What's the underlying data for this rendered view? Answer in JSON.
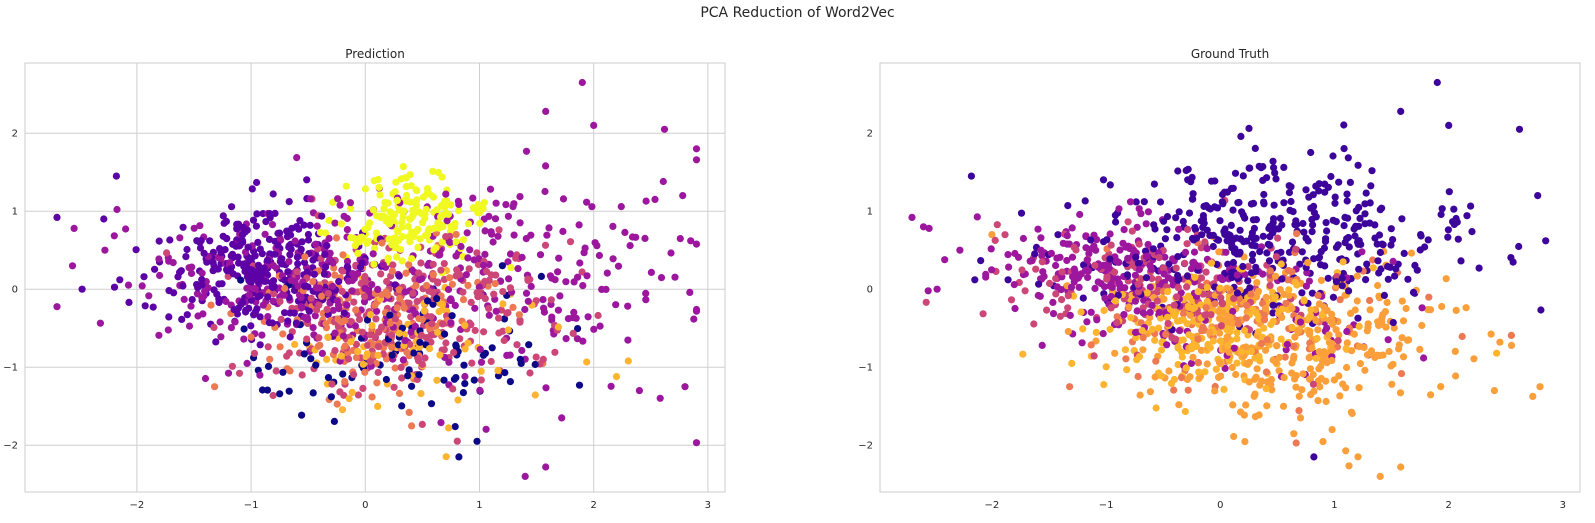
{
  "title": "PCA Reduction of Word2Vec",
  "chart_data": [
    {
      "type": "scatter",
      "title": "Prediction",
      "xlim": [
        -2.98,
        3.15
      ],
      "ylim": [
        -2.6,
        2.9
      ],
      "xticks": [
        -2,
        -1,
        0,
        1,
        2,
        3
      ],
      "yticks": [
        -2,
        -1,
        0,
        1,
        2
      ],
      "xtick_labels": [
        "−2",
        "−1",
        "0",
        "1",
        "2",
        "3"
      ],
      "ytick_labels": [
        "−2",
        "−1",
        "0",
        "1",
        "2"
      ],
      "grid": true,
      "colormap": "plasma",
      "cluster_colors": [
        "#0d0887",
        "#5c01a6",
        "#9c179e",
        "#cc4778",
        "#ed7953",
        "#fdb42f",
        "#f0f921"
      ],
      "clusters": [
        {
          "color_index": 6,
          "center": [
            0.35,
            0.85
          ],
          "spread": [
            0.32,
            0.3
          ],
          "count": 180
        },
        {
          "color_index": 1,
          "center": [
            -0.9,
            0.25
          ],
          "spread": [
            0.45,
            0.38
          ],
          "count": 320
        },
        {
          "color_index": 2,
          "center": [
            -0.5,
            0.0
          ],
          "spread": [
            0.75,
            0.5
          ],
          "count": 250
        },
        {
          "color_index": 2,
          "center": [
            1.3,
            0.3
          ],
          "spread": [
            0.85,
            0.75
          ],
          "count": 190
        },
        {
          "color_index": 3,
          "center": [
            0.3,
            -0.3
          ],
          "spread": [
            0.7,
            0.55
          ],
          "count": 280
        },
        {
          "color_index": 4,
          "center": [
            0.1,
            -0.3
          ],
          "spread": [
            0.5,
            0.45
          ],
          "count": 170
        },
        {
          "color_index": 5,
          "center": [
            0.4,
            -0.75
          ],
          "spread": [
            0.55,
            0.4
          ],
          "count": 80
        },
        {
          "color_index": 0,
          "center": [
            0.4,
            -0.8
          ],
          "spread": [
            0.75,
            0.45
          ],
          "count": 95
        }
      ],
      "outliers": [
        {
          "x": -2.7,
          "y": 0.92,
          "color_index": 1
        },
        {
          "x": -2.55,
          "y": 0.78,
          "color_index": 2
        },
        {
          "x": -2.48,
          "y": 0.0,
          "color_index": 1
        },
        {
          "x": -2.28,
          "y": 0.5,
          "color_index": 2
        },
        {
          "x": -2.18,
          "y": 1.45,
          "color_index": 1
        },
        {
          "x": -2.15,
          "y": 0.12,
          "color_index": 1
        },
        {
          "x": -1.32,
          "y": -1.25,
          "color_index": 4
        },
        {
          "x": 1.9,
          "y": 2.65,
          "color_index": 2
        },
        {
          "x": 2.0,
          "y": 2.1,
          "color_index": 2
        },
        {
          "x": 1.58,
          "y": 2.28,
          "color_index": 2
        },
        {
          "x": 2.62,
          "y": 2.05,
          "color_index": 2
        },
        {
          "x": 2.85,
          "y": 0.62,
          "color_index": 2
        },
        {
          "x": 2.78,
          "y": 1.2,
          "color_index": 2
        },
        {
          "x": 2.4,
          "y": -1.3,
          "color_index": 2
        },
        {
          "x": 2.8,
          "y": -1.25,
          "color_index": 2
        },
        {
          "x": 0.82,
          "y": -2.15,
          "color_index": 0
        },
        {
          "x": 1.4,
          "y": -2.4,
          "color_index": 2
        },
        {
          "x": 1.58,
          "y": -2.28,
          "color_index": 2
        },
        {
          "x": 2.2,
          "y": -1.12,
          "color_index": 5
        },
        {
          "x": 1.72,
          "y": -1.65,
          "color_index": 2
        }
      ]
    },
    {
      "type": "scatter",
      "title": "Ground Truth",
      "xlim": [
        -2.98,
        3.15
      ],
      "ylim": [
        -2.6,
        2.9
      ],
      "xticks": [
        -2,
        -1,
        0,
        1,
        2,
        3
      ],
      "yticks": [
        -2,
        -1,
        0,
        1,
        2
      ],
      "xtick_labels": [
        "−2",
        "−1",
        "0",
        "1",
        "2",
        "3"
      ],
      "ytick_labels": [
        "−2",
        "−1",
        "0",
        "1",
        "2"
      ],
      "grid": false,
      "colormap": "plasma",
      "cluster_colors": [
        "#0d0887",
        "#5c01a6",
        "#9c179e",
        "#cc4778",
        "#ed7953",
        "#fdb42f",
        "#f0f921",
        "#fb9f3a",
        "#3d049b"
      ],
      "clusters": [
        {
          "color_index": 8,
          "center": [
            0.35,
            0.65
          ],
          "spread": [
            0.85,
            0.48
          ],
          "count": 420
        },
        {
          "color_index": 2,
          "center": [
            -0.9,
            0.15
          ],
          "spread": [
            0.55,
            0.38
          ],
          "count": 240
        },
        {
          "color_index": 3,
          "center": [
            -0.5,
            0.05
          ],
          "spread": [
            0.65,
            0.42
          ],
          "count": 170
        },
        {
          "color_index": 5,
          "center": [
            -0.15,
            -0.45
          ],
          "spread": [
            0.55,
            0.4
          ],
          "count": 240
        },
        {
          "color_index": 7,
          "center": [
            0.7,
            -0.65
          ],
          "spread": [
            0.7,
            0.5
          ],
          "count": 310
        },
        {
          "color_index": 4,
          "center": [
            0.3,
            -0.4
          ],
          "spread": [
            0.65,
            0.45
          ],
          "count": 110
        },
        {
          "color_index": 2,
          "center": [
            0.6,
            -0.5
          ],
          "spread": [
            0.6,
            0.4
          ],
          "count": 50
        }
      ],
      "outliers": [
        {
          "x": -2.7,
          "y": 0.92,
          "color_index": 2
        },
        {
          "x": -2.55,
          "y": 0.78,
          "color_index": 2
        },
        {
          "x": -2.48,
          "y": 0.0,
          "color_index": 2
        },
        {
          "x": -2.28,
          "y": 0.5,
          "color_index": 2
        },
        {
          "x": -2.18,
          "y": 1.45,
          "color_index": 8
        },
        {
          "x": -2.15,
          "y": 0.12,
          "color_index": 8
        },
        {
          "x": -1.32,
          "y": -1.25,
          "color_index": 4
        },
        {
          "x": -2.0,
          "y": 0.7,
          "color_index": 7
        },
        {
          "x": 1.9,
          "y": 2.65,
          "color_index": 8
        },
        {
          "x": 2.0,
          "y": 2.1,
          "color_index": 8
        },
        {
          "x": 1.58,
          "y": 2.28,
          "color_index": 8
        },
        {
          "x": 2.62,
          "y": 2.05,
          "color_index": 8
        },
        {
          "x": 2.85,
          "y": 0.62,
          "color_index": 8
        },
        {
          "x": 2.78,
          "y": 1.2,
          "color_index": 8
        },
        {
          "x": 2.4,
          "y": -1.3,
          "color_index": 7
        },
        {
          "x": 2.8,
          "y": -1.25,
          "color_index": 7
        },
        {
          "x": 0.82,
          "y": -2.15,
          "color_index": 8
        },
        {
          "x": 1.4,
          "y": -2.4,
          "color_index": 7
        },
        {
          "x": 1.58,
          "y": -2.28,
          "color_index": 7
        },
        {
          "x": 2.42,
          "y": -0.82,
          "color_index": 5
        },
        {
          "x": 2.55,
          "y": -0.72,
          "color_index": 7
        }
      ]
    }
  ]
}
